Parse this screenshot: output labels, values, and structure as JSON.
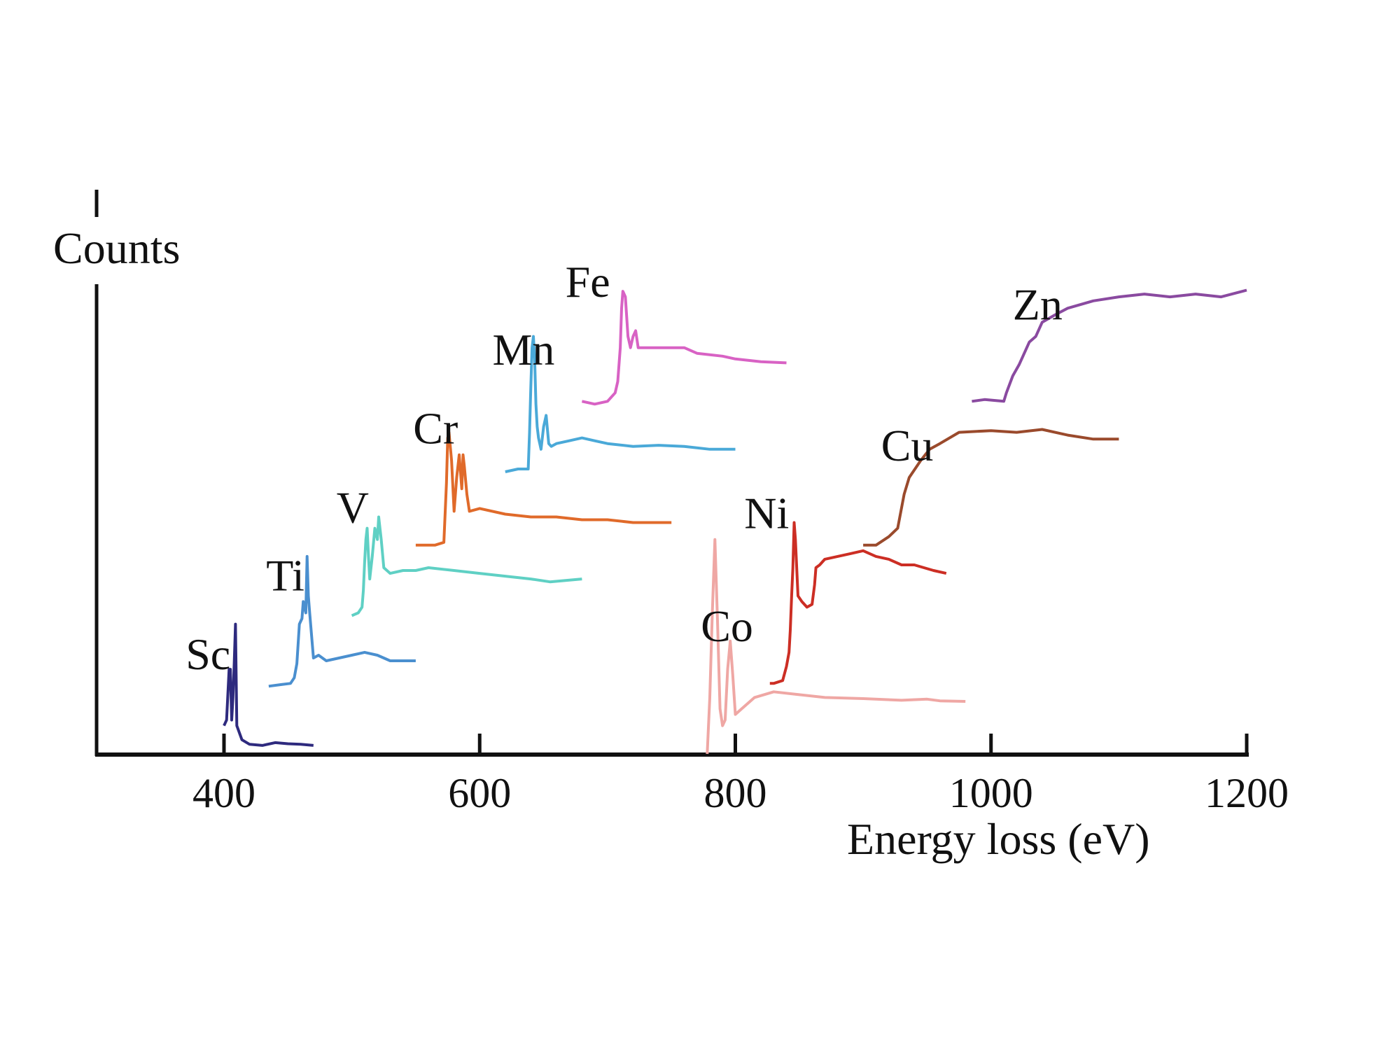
{
  "chart_data": {
    "type": "line",
    "title": "",
    "xlabel": "Energy loss (eV)",
    "ylabel": "Counts",
    "xlim": [
      300,
      1200
    ],
    "ylim": [
      0,
      100
    ],
    "xticks": [
      400,
      600,
      800,
      1000,
      1200
    ],
    "xtick_labels": [
      "400",
      "600",
      "800",
      "1000",
      "1200"
    ],
    "grid": false,
    "legend": "none (inline element labels)",
    "series": [
      {
        "name": "Sc",
        "color": "#2e2a7e",
        "label_at": [
          370,
          15
        ],
        "points": [
          [
            400,
            5
          ],
          [
            402,
            6
          ],
          [
            404,
            15
          ],
          [
            405,
            15
          ],
          [
            406,
            6
          ],
          [
            407,
            10
          ],
          [
            408,
            16
          ],
          [
            409,
            23
          ],
          [
            410,
            5
          ],
          [
            414,
            2.5
          ],
          [
            420,
            1.7
          ],
          [
            430,
            1.5
          ],
          [
            440,
            2
          ],
          [
            450,
            1.8
          ],
          [
            460,
            1.7
          ],
          [
            470,
            1.5
          ]
        ]
      },
      {
        "name": "Ti",
        "color": "#4a8fcf",
        "label_at": [
          433,
          29
        ],
        "points": [
          [
            435,
            12
          ],
          [
            445,
            12.3
          ],
          [
            452,
            12.5
          ],
          [
            455,
            13.5
          ],
          [
            457,
            16
          ],
          [
            459,
            23
          ],
          [
            461,
            24
          ],
          [
            462,
            27
          ],
          [
            464,
            25
          ],
          [
            465,
            35
          ],
          [
            466,
            28
          ],
          [
            467,
            25
          ],
          [
            470,
            17
          ],
          [
            474,
            17.5
          ],
          [
            480,
            16.5
          ],
          [
            490,
            17
          ],
          [
            500,
            17.5
          ],
          [
            510,
            18
          ],
          [
            520,
            17.5
          ],
          [
            530,
            16.5
          ],
          [
            550,
            16.5
          ]
        ]
      },
      {
        "name": "V",
        "color": "#5fd0c4",
        "label_at": [
          488,
          41
        ],
        "points": [
          [
            500,
            24.5
          ],
          [
            505,
            25
          ],
          [
            508,
            26
          ],
          [
            509,
            29
          ],
          [
            510,
            34
          ],
          [
            511,
            38
          ],
          [
            512,
            40
          ],
          [
            513,
            35
          ],
          [
            514,
            31
          ],
          [
            516,
            35
          ],
          [
            518,
            40
          ],
          [
            520,
            38
          ],
          [
            521,
            42
          ],
          [
            523,
            38
          ],
          [
            525,
            33
          ],
          [
            530,
            32
          ],
          [
            540,
            32.5
          ],
          [
            550,
            32.5
          ],
          [
            560,
            33
          ],
          [
            580,
            32.5
          ],
          [
            600,
            32
          ],
          [
            620,
            31.5
          ],
          [
            640,
            31
          ],
          [
            655,
            30.5
          ],
          [
            680,
            31
          ]
        ]
      },
      {
        "name": "Cr",
        "color": "#e06a2a",
        "label_at": [
          548,
          55
        ],
        "points": [
          [
            550,
            37
          ],
          [
            565,
            37
          ],
          [
            572,
            37.5
          ],
          [
            574,
            48
          ],
          [
            575,
            56
          ],
          [
            576,
            57
          ],
          [
            578,
            52
          ],
          [
            580,
            43
          ],
          [
            582,
            49
          ],
          [
            584,
            53
          ],
          [
            586,
            47
          ],
          [
            587,
            53
          ],
          [
            588,
            51
          ],
          [
            590,
            46
          ],
          [
            592,
            43
          ],
          [
            600,
            43.5
          ],
          [
            620,
            42.5
          ],
          [
            640,
            42
          ],
          [
            660,
            42
          ],
          [
            680,
            41.5
          ],
          [
            700,
            41.5
          ],
          [
            720,
            41
          ],
          [
            750,
            41
          ]
        ]
      },
      {
        "name": "Mn",
        "color": "#4aa9d8",
        "label_at": [
          610,
          69
        ],
        "points": [
          [
            620,
            50
          ],
          [
            630,
            50.5
          ],
          [
            638,
            50.5
          ],
          [
            639,
            57
          ],
          [
            640,
            65
          ],
          [
            641,
            72
          ],
          [
            642,
            74
          ],
          [
            643,
            70
          ],
          [
            644,
            62
          ],
          [
            645,
            58
          ],
          [
            646,
            56
          ],
          [
            648,
            54
          ],
          [
            650,
            58
          ],
          [
            652,
            60
          ],
          [
            654,
            55
          ],
          [
            656,
            54.5
          ],
          [
            660,
            55
          ],
          [
            670,
            55.5
          ],
          [
            680,
            56
          ],
          [
            690,
            55.5
          ],
          [
            700,
            55
          ],
          [
            720,
            54.5
          ],
          [
            740,
            54.7
          ],
          [
            760,
            54.5
          ],
          [
            780,
            54
          ],
          [
            800,
            54
          ]
        ]
      },
      {
        "name": "Fe",
        "color": "#d862c4",
        "label_at": [
          667,
          81
        ],
        "points": [
          [
            680,
            62.5
          ],
          [
            690,
            62
          ],
          [
            700,
            62.5
          ],
          [
            706,
            64
          ],
          [
            708,
            66
          ],
          [
            710,
            72
          ],
          [
            711,
            79
          ],
          [
            712,
            82
          ],
          [
            714,
            81
          ],
          [
            716,
            74
          ],
          [
            718,
            72
          ],
          [
            720,
            74
          ],
          [
            722,
            75
          ],
          [
            724,
            72
          ],
          [
            730,
            72
          ],
          [
            760,
            72
          ],
          [
            770,
            71
          ],
          [
            790,
            70.5
          ],
          [
            800,
            70
          ],
          [
            820,
            69.5
          ],
          [
            840,
            69.3
          ]
        ]
      },
      {
        "name": "Co",
        "color": "#efa7a4",
        "label_at": [
          773,
          20
        ],
        "points": [
          [
            778,
            0
          ],
          [
            780,
            10
          ],
          [
            782,
            25
          ],
          [
            784,
            38
          ],
          [
            786,
            24
          ],
          [
            788,
            8
          ],
          [
            790,
            5
          ],
          [
            792,
            6
          ],
          [
            794,
            15
          ],
          [
            796,
            20
          ],
          [
            798,
            14
          ],
          [
            800,
            7
          ],
          [
            805,
            8
          ],
          [
            815,
            10
          ],
          [
            830,
            11
          ],
          [
            850,
            10.5
          ],
          [
            870,
            10
          ],
          [
            900,
            9.8
          ],
          [
            930,
            9.5
          ],
          [
            950,
            9.7
          ],
          [
            960,
            9.4
          ],
          [
            980,
            9.3
          ]
        ]
      },
      {
        "name": "Ni",
        "color": "#cc2e24",
        "label_at": [
          807,
          40
        ],
        "points": [
          [
            827,
            12.5
          ],
          [
            830,
            12.5
          ],
          [
            837,
            13
          ],
          [
            840,
            15.5
          ],
          [
            842,
            18
          ],
          [
            843,
            22
          ],
          [
            844,
            28
          ],
          [
            845,
            33
          ],
          [
            846,
            41
          ],
          [
            847,
            38
          ],
          [
            849,
            28
          ],
          [
            852,
            27
          ],
          [
            856,
            26
          ],
          [
            860,
            26.5
          ],
          [
            862,
            30
          ],
          [
            863,
            33
          ],
          [
            866,
            33.5
          ],
          [
            870,
            34.5
          ],
          [
            880,
            35
          ],
          [
            890,
            35.5
          ],
          [
            900,
            36
          ],
          [
            910,
            35
          ],
          [
            920,
            34.5
          ],
          [
            930,
            33.5
          ],
          [
            940,
            33.5
          ],
          [
            955,
            32.5
          ],
          [
            965,
            32
          ]
        ]
      },
      {
        "name": "Cu",
        "color": "#9a4a2c",
        "label_at": [
          914,
          52
        ],
        "points": [
          [
            900,
            37
          ],
          [
            910,
            37
          ],
          [
            920,
            38.5
          ],
          [
            927,
            40
          ],
          [
            932,
            46
          ],
          [
            936,
            49
          ],
          [
            945,
            52
          ],
          [
            952,
            54
          ],
          [
            960,
            55
          ],
          [
            975,
            57
          ],
          [
            1000,
            57.3
          ],
          [
            1020,
            57
          ],
          [
            1040,
            57.5
          ],
          [
            1060,
            56.5
          ],
          [
            1080,
            55.8
          ],
          [
            1100,
            55.8
          ]
        ]
      },
      {
        "name": "Zn",
        "color": "#8a4aa0",
        "label_at": [
          1017,
          77
        ],
        "points": [
          [
            985,
            62.5
          ],
          [
            995,
            62.8
          ],
          [
            1010,
            62.5
          ],
          [
            1012,
            64
          ],
          [
            1017,
            67
          ],
          [
            1022,
            69
          ],
          [
            1030,
            73
          ],
          [
            1035,
            74
          ],
          [
            1040,
            76.5
          ],
          [
            1050,
            77.8
          ],
          [
            1060,
            79
          ],
          [
            1080,
            80.3
          ],
          [
            1100,
            81
          ],
          [
            1120,
            81.5
          ],
          [
            1140,
            81
          ],
          [
            1160,
            81.5
          ],
          [
            1180,
            81
          ],
          [
            1200,
            82.2
          ]
        ]
      }
    ]
  }
}
